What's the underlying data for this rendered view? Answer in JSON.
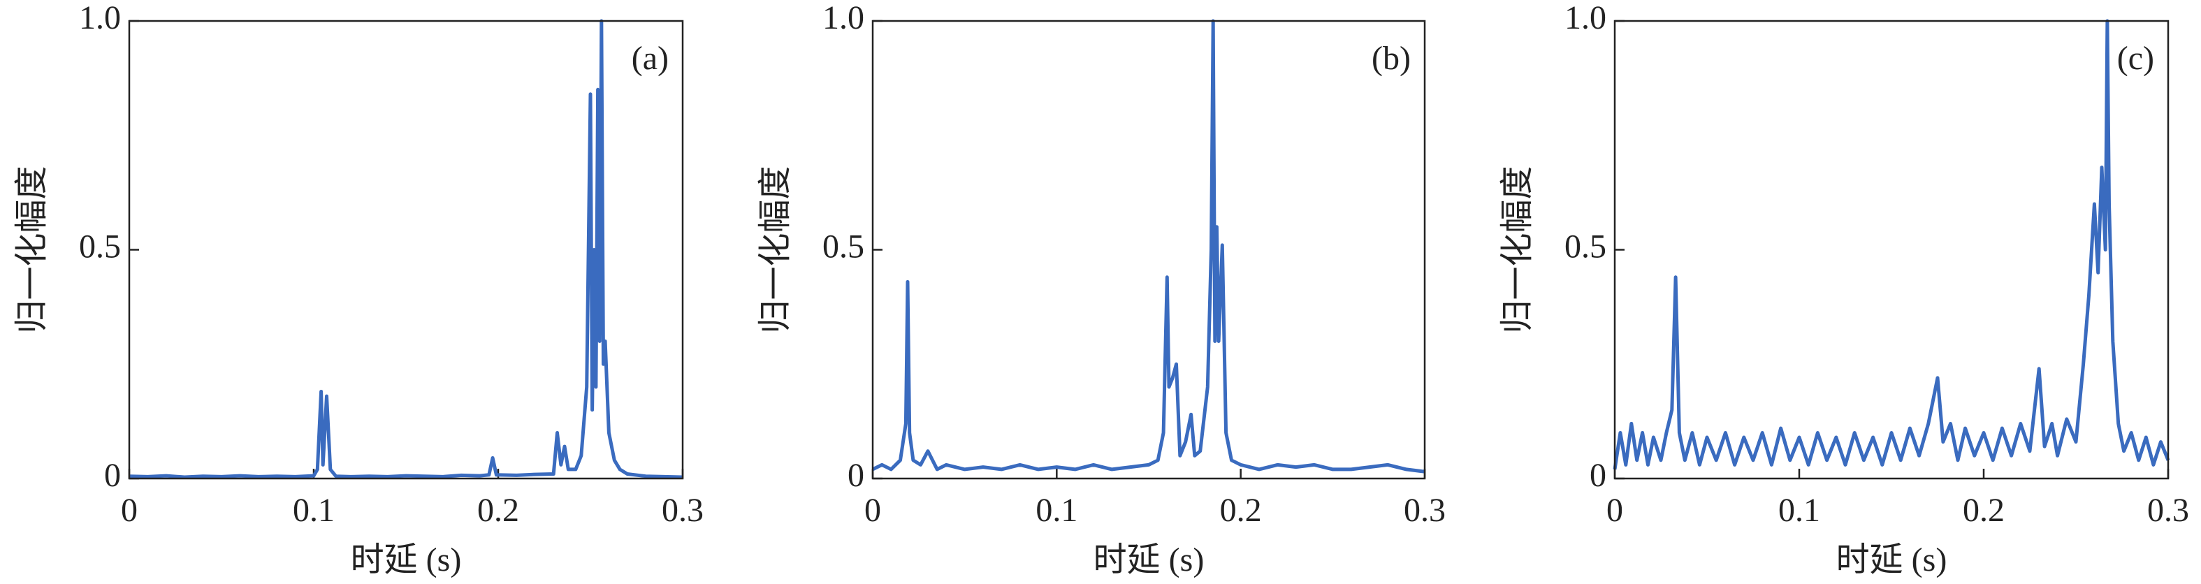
{
  "chart_data": [
    {
      "type": "line",
      "annotation": "(a)",
      "xlabel": "时延 (s)",
      "ylabel": "归一化幅度",
      "color": "#3a6bbf",
      "xlim": [
        0,
        0.3
      ],
      "ylim": [
        0,
        1
      ],
      "xticks": [
        0,
        0.1,
        0.2,
        0.3
      ],
      "yticks": [
        0,
        0.5,
        {
          "value": 1,
          "label": "1.0"
        }
      ],
      "x": [
        0,
        0.01,
        0.02,
        0.03,
        0.04,
        0.05,
        0.06,
        0.07,
        0.08,
        0.09,
        0.1,
        0.102,
        0.104,
        0.105,
        0.107,
        0.109,
        0.112,
        0.12,
        0.13,
        0.14,
        0.15,
        0.16,
        0.17,
        0.18,
        0.19,
        0.195,
        0.197,
        0.199,
        0.21,
        0.22,
        0.23,
        0.232,
        0.234,
        0.236,
        0.238,
        0.242,
        0.245,
        0.248,
        0.25,
        0.251,
        0.252,
        0.253,
        0.254,
        0.255,
        0.256,
        0.257,
        0.258,
        0.26,
        0.263,
        0.266,
        0.27,
        0.28,
        0.29,
        0.3
      ],
      "values": [
        0.005,
        0.004,
        0.006,
        0.003,
        0.005,
        0.004,
        0.006,
        0.004,
        0.005,
        0.004,
        0.006,
        0.02,
        0.19,
        0.03,
        0.18,
        0.02,
        0.005,
        0.004,
        0.005,
        0.004,
        0.006,
        0.005,
        0.004,
        0.007,
        0.006,
        0.008,
        0.045,
        0.008,
        0.007,
        0.009,
        0.01,
        0.1,
        0.03,
        0.07,
        0.02,
        0.02,
        0.05,
        0.2,
        0.84,
        0.15,
        0.5,
        0.2,
        0.85,
        0.3,
        1.0,
        0.25,
        0.3,
        0.1,
        0.04,
        0.02,
        0.01,
        0.005,
        0.004,
        0.003
      ]
    },
    {
      "type": "line",
      "annotation": "(b)",
      "xlabel": "时延 (s)",
      "ylabel": "归一化幅度",
      "color": "#3a6bbf",
      "xlim": [
        0,
        0.3
      ],
      "ylim": [
        0,
        1
      ],
      "xticks": [
        0,
        0.1,
        0.2,
        0.3
      ],
      "yticks": [
        0,
        0.5,
        {
          "value": 1,
          "label": "1.0"
        }
      ],
      "x": [
        0,
        0.005,
        0.01,
        0.015,
        0.018,
        0.019,
        0.02,
        0.022,
        0.026,
        0.03,
        0.035,
        0.04,
        0.05,
        0.06,
        0.07,
        0.08,
        0.09,
        0.1,
        0.11,
        0.12,
        0.13,
        0.14,
        0.15,
        0.155,
        0.158,
        0.16,
        0.161,
        0.163,
        0.165,
        0.167,
        0.17,
        0.173,
        0.175,
        0.178,
        0.182,
        0.184,
        0.185,
        0.186,
        0.187,
        0.188,
        0.19,
        0.192,
        0.195,
        0.2,
        0.21,
        0.22,
        0.23,
        0.24,
        0.25,
        0.26,
        0.27,
        0.28,
        0.29,
        0.3
      ],
      "values": [
        0.02,
        0.03,
        0.02,
        0.04,
        0.12,
        0.43,
        0.1,
        0.04,
        0.03,
        0.06,
        0.02,
        0.03,
        0.02,
        0.025,
        0.02,
        0.03,
        0.02,
        0.025,
        0.02,
        0.03,
        0.02,
        0.025,
        0.03,
        0.04,
        0.1,
        0.44,
        0.2,
        0.22,
        0.25,
        0.05,
        0.08,
        0.14,
        0.05,
        0.06,
        0.2,
        0.5,
        1.0,
        0.3,
        0.55,
        0.3,
        0.51,
        0.1,
        0.04,
        0.03,
        0.02,
        0.03,
        0.025,
        0.03,
        0.02,
        0.02,
        0.025,
        0.03,
        0.02,
        0.015
      ]
    },
    {
      "type": "line",
      "annotation": "(c)",
      "xlabel": "时延 (s)",
      "ylabel": "归一化幅度",
      "color": "#3a6bbf",
      "xlim": [
        0,
        0.3
      ],
      "ylim": [
        0,
        1
      ],
      "xticks": [
        0,
        0.1,
        0.2,
        0.3
      ],
      "yticks": [
        0,
        0.5,
        {
          "value": 1,
          "label": "1.0"
        }
      ],
      "x": [
        0,
        0.003,
        0.006,
        0.009,
        0.012,
        0.015,
        0.018,
        0.021,
        0.025,
        0.028,
        0.031,
        0.033,
        0.035,
        0.038,
        0.042,
        0.046,
        0.05,
        0.055,
        0.06,
        0.065,
        0.07,
        0.075,
        0.08,
        0.085,
        0.09,
        0.095,
        0.1,
        0.105,
        0.11,
        0.115,
        0.12,
        0.125,
        0.13,
        0.135,
        0.14,
        0.145,
        0.15,
        0.155,
        0.16,
        0.165,
        0.17,
        0.175,
        0.178,
        0.182,
        0.186,
        0.19,
        0.195,
        0.2,
        0.205,
        0.21,
        0.215,
        0.22,
        0.225,
        0.23,
        0.233,
        0.237,
        0.24,
        0.245,
        0.25,
        0.254,
        0.257,
        0.26,
        0.262,
        0.264,
        0.266,
        0.267,
        0.268,
        0.27,
        0.273,
        0.276,
        0.28,
        0.284,
        0.288,
        0.292,
        0.296,
        0.3
      ],
      "values": [
        0.02,
        0.1,
        0.03,
        0.12,
        0.04,
        0.1,
        0.03,
        0.09,
        0.04,
        0.1,
        0.15,
        0.44,
        0.1,
        0.04,
        0.1,
        0.03,
        0.09,
        0.04,
        0.1,
        0.03,
        0.09,
        0.04,
        0.1,
        0.03,
        0.11,
        0.04,
        0.09,
        0.03,
        0.1,
        0.04,
        0.09,
        0.03,
        0.1,
        0.04,
        0.09,
        0.03,
        0.1,
        0.04,
        0.11,
        0.05,
        0.12,
        0.22,
        0.08,
        0.12,
        0.04,
        0.11,
        0.05,
        0.1,
        0.04,
        0.11,
        0.05,
        0.12,
        0.06,
        0.24,
        0.07,
        0.12,
        0.05,
        0.13,
        0.08,
        0.25,
        0.4,
        0.6,
        0.45,
        0.68,
        0.5,
        1.0,
        0.6,
        0.3,
        0.12,
        0.06,
        0.1,
        0.04,
        0.09,
        0.03,
        0.08,
        0.04
      ]
    }
  ]
}
